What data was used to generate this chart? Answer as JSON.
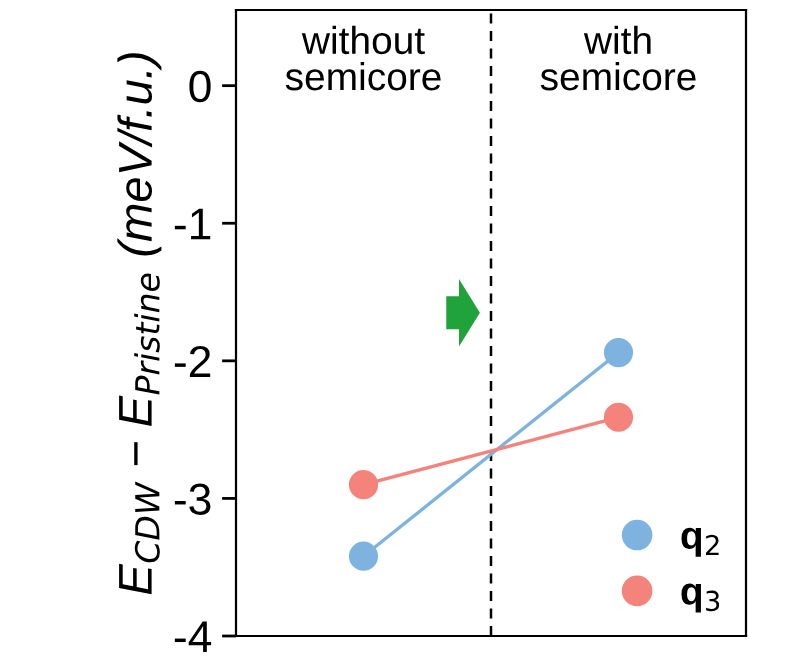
{
  "chart_data": {
    "type": "line",
    "categories": [
      null,
      null
    ],
    "ylim": [
      -4,
      0.55
    ],
    "yticks": [
      0,
      -1,
      -2,
      -3,
      -4
    ],
    "ylabel": "E$_{CDW}$ − E$_{Pristine}$ (meV/f.u.)",
    "series": [
      {
        "name": "q$_{2}$",
        "color": "#7eb3e0",
        "values": [
          -3.42,
          -1.94
        ]
      },
      {
        "name": "q$_{3}$",
        "color": "#f4837b",
        "values": [
          -2.9,
          -2.41
        ]
      }
    ],
    "annotations": [
      "without\nsemicore",
      "with\nsemicore"
    ],
    "marker": "circle",
    "legend": "bottom right",
    "grid": false,
    "tick_labels": "y"
  }
}
